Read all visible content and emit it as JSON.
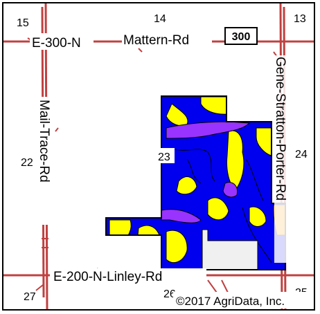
{
  "roads": {
    "top_road": "E-300-N",
    "top_road_name": "Mattern-Rd",
    "route_badge": "300",
    "left_road": "Mail-Trace-Rd",
    "right_road": "Gene-Stratton-Porter-Rd",
    "bottom_road": "E-200-N-Linley-Rd"
  },
  "sections": {
    "s15": "15",
    "s14": "14",
    "s13": "13",
    "s22": "22",
    "s23": "23",
    "s24": "24",
    "s27": "27",
    "s26": "26",
    "s25": "25"
  },
  "copyright": "©2017 AgriData, Inc.",
  "colors": {
    "road": "#c04040",
    "soil_blue": "#0000ee",
    "soil_yellow": "#ffff00",
    "soil_purple": "#9933ff",
    "soil_orange": "#ff9900",
    "excluded": "#f0f0f0"
  }
}
